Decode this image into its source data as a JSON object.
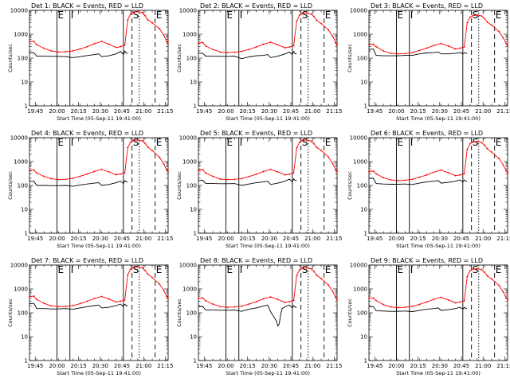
{
  "figure": {
    "background": "#ffffff"
  },
  "chart_data": {
    "type": "line",
    "layout": "3x3 grid",
    "title_template": "Det {n}: BLACK = Events, RED = LLD",
    "xlabel": "Start Time (05-Sep-11 19:41:00)",
    "ylabel": "Counts/sec",
    "yscale": "log",
    "ylim": [
      1,
      10000
    ],
    "ytick_labels": [
      "1",
      "10",
      "100",
      "1000",
      "10000"
    ],
    "xlim_minutes": [
      0,
      96
    ],
    "xtick_labels": [
      "19:45",
      "20:00",
      "20:15",
      "20:30",
      "20:45",
      "21:00",
      "21:15"
    ],
    "xtick_minutes": [
      4,
      19,
      34,
      49,
      64,
      79,
      94
    ],
    "series_colors": {
      "Events": "#000000",
      "LLD": "#ff0000"
    },
    "markers": [
      {
        "label": "E",
        "minute": 19,
        "style": "solid"
      },
      {
        "label": "I",
        "minute": 28,
        "style": "solid"
      },
      {
        "label": "",
        "minute": 65,
        "style": "solid"
      },
      {
        "label": "S",
        "minute": 71,
        "style": "dashed"
      },
      {
        "label": "",
        "minute": 76,
        "style": "dotted"
      },
      {
        "label": "E",
        "minute": 87,
        "style": "dashed"
      }
    ],
    "panels": [
      {
        "title": "Det 1: BLACK = Events, RED = LLD",
        "events": {
          "x": [
            0,
            3,
            5,
            10,
            15,
            20,
            25,
            30,
            35,
            40,
            45,
            48,
            50,
            55,
            60,
            63,
            65,
            66,
            67,
            68
          ],
          "y": [
            165,
            170,
            120,
            120,
            118,
            118,
            115,
            105,
            115,
            128,
            140,
            150,
            115,
            125,
            150,
            190,
            140,
            200,
            160,
            160
          ]
        },
        "lld": {
          "x": [
            0,
            3,
            5,
            10,
            15,
            20,
            25,
            30,
            35,
            40,
            45,
            50,
            55,
            60,
            63,
            66,
            68,
            70,
            72,
            75,
            78,
            80,
            82,
            85,
            90,
            93,
            95,
            96
          ],
          "y": [
            480,
            510,
            360,
            260,
            200,
            180,
            185,
            200,
            240,
            300,
            400,
            500,
            380,
            280,
            300,
            350,
            4000,
            7000,
            8500,
            8800,
            8000,
            6000,
            4000,
            3000,
            1700,
            900,
            500,
            400
          ]
        }
      },
      {
        "title": "Det 2: BLACK = Events, RED = LLD",
        "events": {
          "x": [
            0,
            3,
            5,
            10,
            15,
            20,
            25,
            30,
            35,
            40,
            45,
            48,
            50,
            55,
            60,
            63,
            65,
            66,
            67,
            68
          ],
          "y": [
            160,
            160,
            120,
            120,
            118,
            118,
            120,
            95,
            112,
            125,
            130,
            140,
            105,
            120,
            150,
            180,
            140,
            190,
            150,
            150
          ]
        },
        "lld": {
          "x": [
            0,
            3,
            5,
            10,
            15,
            20,
            25,
            30,
            35,
            40,
            45,
            50,
            55,
            60,
            63,
            66,
            68,
            70,
            72,
            75,
            78,
            80,
            82,
            85,
            90,
            93,
            95,
            96
          ],
          "y": [
            420,
            450,
            320,
            230,
            180,
            170,
            175,
            190,
            230,
            290,
            380,
            460,
            360,
            270,
            290,
            330,
            3500,
            6200,
            7500,
            7800,
            7000,
            5500,
            3800,
            2800,
            1500,
            800,
            450,
            350
          ]
        }
      },
      {
        "title": "Det 3: BLACK = Events, RED = LLD",
        "events": {
          "x": [
            0,
            3,
            5,
            10,
            15,
            20,
            25,
            30,
            35,
            40,
            45,
            48,
            50,
            55,
            60,
            63,
            65,
            66,
            67,
            68
          ],
          "y": [
            230,
            240,
            130,
            125,
            125,
            125,
            130,
            130,
            150,
            165,
            170,
            180,
            150,
            150,
            160,
            170,
            150,
            170,
            160,
            160
          ]
        },
        "lld": {
          "x": [
            0,
            3,
            5,
            10,
            15,
            20,
            25,
            30,
            35,
            40,
            45,
            50,
            55,
            60,
            63,
            66,
            68,
            70,
            72,
            75,
            78,
            80,
            82,
            85,
            90,
            93,
            95,
            96
          ],
          "y": [
            360,
            380,
            300,
            200,
            160,
            150,
            155,
            170,
            210,
            260,
            340,
            410,
            320,
            240,
            260,
            290,
            3000,
            5200,
            6000,
            6300,
            5800,
            4500,
            3200,
            2400,
            1300,
            700,
            400,
            330
          ]
        }
      },
      {
        "title": "Det 4: BLACK = Events, RED = LLD",
        "events": {
          "x": [
            0,
            3,
            5,
            10,
            15,
            20,
            25,
            30,
            35,
            40,
            45,
            48,
            50,
            55,
            60,
            63,
            65,
            66,
            67,
            68
          ],
          "y": [
            150,
            150,
            100,
            100,
            98,
            98,
            100,
            92,
            105,
            115,
            125,
            130,
            100,
            110,
            130,
            150,
            120,
            160,
            140,
            140
          ]
        },
        "lld": {
          "x": [
            0,
            3,
            5,
            10,
            15,
            20,
            25,
            30,
            35,
            40,
            45,
            50,
            55,
            60,
            63,
            66,
            68,
            70,
            72,
            75,
            78,
            80,
            82,
            85,
            90,
            93,
            95,
            96
          ],
          "y": [
            420,
            440,
            330,
            240,
            190,
            175,
            180,
            200,
            240,
            300,
            390,
            470,
            370,
            280,
            300,
            340,
            3800,
            6500,
            7800,
            8000,
            7400,
            5800,
            4000,
            2900,
            1500,
            800,
            450,
            380
          ]
        }
      },
      {
        "title": "Det 5: BLACK = Events, RED = LLD",
        "events": {
          "x": [
            0,
            3,
            5,
            10,
            15,
            20,
            25,
            30,
            35,
            40,
            45,
            48,
            50,
            55,
            60,
            63,
            65,
            66,
            67,
            68
          ],
          "y": [
            160,
            165,
            120,
            120,
            118,
            118,
            120,
            100,
            115,
            130,
            140,
            150,
            110,
            125,
            150,
            185,
            140,
            190,
            160,
            160
          ]
        },
        "lld": {
          "x": [
            0,
            3,
            5,
            10,
            15,
            20,
            25,
            30,
            35,
            40,
            45,
            50,
            55,
            60,
            63,
            66,
            68,
            70,
            72,
            75,
            78,
            80,
            82,
            85,
            90,
            93,
            95,
            96
          ],
          "y": [
            430,
            460,
            330,
            240,
            185,
            175,
            180,
            195,
            235,
            295,
            385,
            465,
            365,
            275,
            295,
            335,
            3700,
            6400,
            7700,
            8000,
            7200,
            5600,
            3900,
            2900,
            1550,
            820,
            460,
            380
          ]
        }
      },
      {
        "title": "Det 6: BLACK = Events, RED = LLD",
        "events": {
          "x": [
            0,
            3,
            5,
            10,
            15,
            20,
            25,
            30,
            35,
            40,
            45,
            48,
            50,
            55,
            60,
            63,
            65,
            66,
            67,
            68
          ],
          "y": [
            200,
            200,
            120,
            115,
            112,
            112,
            115,
            110,
            125,
            140,
            150,
            160,
            125,
            135,
            150,
            170,
            140,
            170,
            150,
            150
          ]
        },
        "lld": {
          "x": [
            0,
            3,
            5,
            10,
            15,
            20,
            25,
            30,
            35,
            40,
            45,
            50,
            55,
            60,
            63,
            66,
            68,
            70,
            72,
            75,
            78,
            80,
            82,
            85,
            90,
            93,
            95,
            96
          ],
          "y": [
            380,
            400,
            310,
            210,
            170,
            160,
            165,
            180,
            220,
            275,
            360,
            440,
            340,
            255,
            275,
            310,
            3200,
            5600,
            6600,
            6900,
            6300,
            4900,
            3400,
            2500,
            1350,
            720,
            410,
            340
          ]
        }
      },
      {
        "title": "Det 7: BLACK = Events, RED = LLD",
        "events": {
          "x": [
            0,
            3,
            5,
            10,
            15,
            20,
            25,
            30,
            35,
            40,
            45,
            48,
            50,
            55,
            60,
            63,
            65,
            66,
            67,
            68
          ],
          "y": [
            240,
            250,
            150,
            150,
            145,
            145,
            150,
            140,
            160,
            180,
            200,
            210,
            160,
            170,
            200,
            230,
            180,
            230,
            200,
            200
          ]
        },
        "lld": {
          "x": [
            0,
            3,
            5,
            10,
            15,
            20,
            25,
            30,
            35,
            40,
            45,
            50,
            55,
            60,
            63,
            66,
            68,
            70,
            72,
            75,
            78,
            80,
            82,
            85,
            90,
            93,
            95,
            96
          ],
          "y": [
            470,
            500,
            360,
            250,
            195,
            180,
            185,
            200,
            240,
            305,
            395,
            480,
            375,
            285,
            305,
            345,
            3900,
            6700,
            8000,
            8300,
            7600,
            5900,
            4100,
            3000,
            1600,
            850,
            480,
            400
          ]
        }
      },
      {
        "title": "Det 8: BLACK = Events, RED = LLD",
        "events": {
          "x": [
            0,
            3,
            5,
            10,
            15,
            20,
            25,
            30,
            35,
            40,
            45,
            48,
            50,
            52,
            54,
            55,
            56,
            57,
            58,
            60,
            62,
            63,
            65,
            66,
            67,
            68
          ],
          "y": [
            180,
            185,
            130,
            130,
            128,
            128,
            130,
            115,
            140,
            160,
            190,
            210,
            110,
            70,
            45,
            28,
            35,
            90,
            150,
            180,
            200,
            210,
            160,
            200,
            170,
            170
          ]
        },
        "lld": {
          "x": [
            0,
            3,
            5,
            10,
            15,
            20,
            25,
            30,
            35,
            40,
            45,
            50,
            55,
            60,
            63,
            66,
            68,
            70,
            72,
            75,
            78,
            80,
            82,
            85,
            90,
            93,
            95,
            96
          ],
          "y": [
            400,
            420,
            320,
            230,
            180,
            170,
            175,
            190,
            230,
            290,
            380,
            460,
            360,
            270,
            290,
            330,
            3600,
            6200,
            7400,
            7700,
            7000,
            5400,
            3700,
            2700,
            1450,
            780,
            440,
            360
          ]
        }
      },
      {
        "title": "Det 9: BLACK = Events, RED = LLD",
        "events": {
          "x": [
            0,
            3,
            5,
            10,
            15,
            20,
            25,
            30,
            35,
            40,
            45,
            48,
            50,
            55,
            60,
            63,
            65,
            66,
            67,
            68
          ],
          "y": [
            180,
            180,
            120,
            118,
            115,
            115,
            118,
            112,
            125,
            140,
            150,
            160,
            125,
            135,
            150,
            170,
            140,
            170,
            150,
            150
          ]
        },
        "lld": {
          "x": [
            0,
            3,
            5,
            10,
            15,
            20,
            25,
            30,
            35,
            40,
            45,
            50,
            55,
            60,
            63,
            66,
            68,
            70,
            72,
            75,
            78,
            80,
            82,
            85,
            90,
            93,
            95,
            96
          ],
          "y": [
            400,
            420,
            320,
            220,
            175,
            165,
            170,
            185,
            225,
            280,
            365,
            445,
            345,
            260,
            280,
            315,
            3300,
            5700,
            6700,
            7000,
            6400,
            5000,
            3500,
            2600,
            1400,
            740,
            420,
            350
          ]
        }
      }
    ]
  }
}
